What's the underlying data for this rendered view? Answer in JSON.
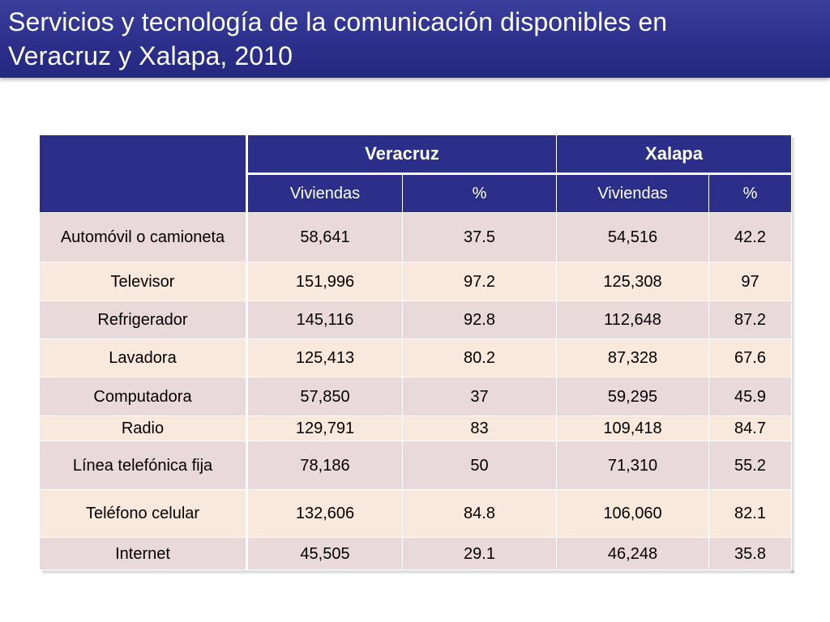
{
  "title": {
    "text": "Servicios y tecnología de la comunicación  disponibles en\nVeracruz y Xalapa, 2010"
  },
  "table": {
    "groups": [
      "Veracruz",
      "Xalapa"
    ],
    "subheaders": [
      "Viviendas",
      "%",
      "Viviendas",
      "%"
    ],
    "rows": [
      {
        "label": "Automóvil o camioneta",
        "values": [
          "58,641",
          "37.5",
          "54,516",
          "42.2"
        ]
      },
      {
        "label": "Televisor",
        "values": [
          "151,996",
          "97.2",
          "125,308",
          "97"
        ]
      },
      {
        "label": "Refrigerador",
        "values": [
          "145,116",
          "92.8",
          "112,648",
          "87.2"
        ]
      },
      {
        "label": "Lavadora",
        "values": [
          "125,413",
          "80.2",
          "87,328",
          "67.6"
        ]
      },
      {
        "label": "Computadora",
        "values": [
          "57,850",
          "37",
          "59,295",
          "45.9"
        ]
      },
      {
        "label": "Radio",
        "values": [
          "129,791",
          "83",
          "109,418",
          "84.7"
        ]
      },
      {
        "label": "Línea telefónica fija",
        "values": [
          "78,186",
          "50",
          "71,310",
          "55.2"
        ]
      },
      {
        "label": "Teléfono celular",
        "values": [
          "132,606",
          "84.8",
          "106,060",
          "82.1"
        ]
      },
      {
        "label": "Internet",
        "values": [
          "45,505",
          "29.1",
          "46,248",
          "35.8"
        ]
      }
    ]
  },
  "colors": {
    "header_bg": "#2b2f8a",
    "row_odd": "#ead9db",
    "row_even": "#f9e8dc"
  }
}
